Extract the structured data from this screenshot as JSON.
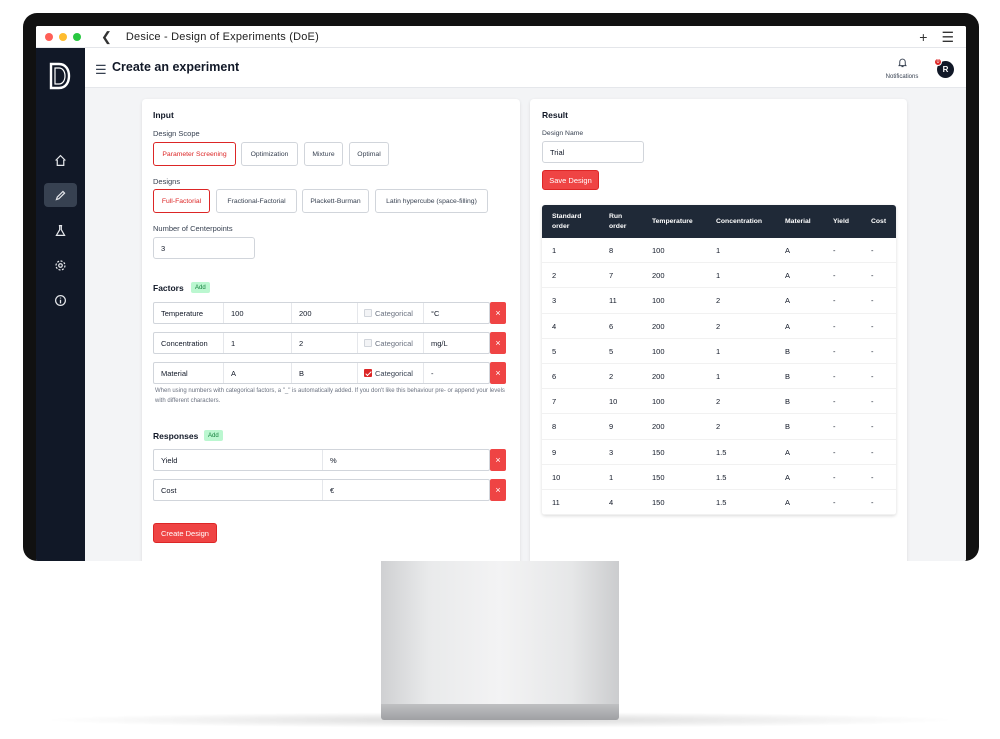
{
  "window": {
    "title": "Desice - Design of Experiments (DoE)"
  },
  "sidebar": {
    "logo_letter": "D",
    "items": [
      {
        "icon": "home-icon"
      },
      {
        "icon": "pencil-icon",
        "active": true
      },
      {
        "icon": "flask-icon"
      },
      {
        "icon": "gear-icon"
      },
      {
        "icon": "info-icon"
      }
    ]
  },
  "header": {
    "title": "Create an experiment",
    "notifications_label": "Notifications",
    "avatar_initial": "R",
    "avatar_badge": "0"
  },
  "input": {
    "heading": "Input",
    "design_scope_label": "Design Scope",
    "design_scope_options": [
      "Parameter Screening",
      "Optimization",
      "Mixture",
      "Optimal"
    ],
    "design_scope_selected": "Parameter Screening",
    "designs_label": "Designs",
    "designs_options": [
      "Full-Factorial",
      "Fractional-Factorial",
      "Plackett-Burman",
      "Latin hypercube (space-filling)"
    ],
    "designs_selected": "Full-Factorial",
    "centerpoints_label": "Number of Centerpoints",
    "centerpoints_value": "3",
    "factors_heading": "Factors",
    "add_label": "Add",
    "categorical_label": "Categorical",
    "factors": [
      {
        "name": "Temperature",
        "low": "100",
        "high": "200",
        "categorical": false,
        "unit": "°C"
      },
      {
        "name": "Concentration",
        "low": "1",
        "high": "2",
        "categorical": false,
        "unit": "mg/L"
      },
      {
        "name": "Material",
        "low": "A",
        "high": "B",
        "categorical": true,
        "unit": "-"
      }
    ],
    "note": "When using numbers with categorical factors, a \"_\" is automatically added. If you don't like this behaviour pre- or append your levels with different characters.",
    "responses_heading": "Responses",
    "responses": [
      {
        "name": "Yield",
        "unit": "%"
      },
      {
        "name": "Cost",
        "unit": "€"
      }
    ],
    "create_button": "Create Design",
    "delete_symbol": "×"
  },
  "result": {
    "heading": "Result",
    "design_name_label": "Design Name",
    "design_name_value": "Trial",
    "save_button": "Save Design",
    "table": {
      "columns": [
        "Standard order",
        "Run order",
        "Temperature",
        "Concentration",
        "Material",
        "Yield",
        "Cost"
      ],
      "rows": [
        [
          "1",
          "8",
          "100",
          "1",
          "A",
          "-",
          "-"
        ],
        [
          "2",
          "7",
          "200",
          "1",
          "A",
          "-",
          "-"
        ],
        [
          "3",
          "11",
          "100",
          "2",
          "A",
          "-",
          "-"
        ],
        [
          "4",
          "6",
          "200",
          "2",
          "A",
          "-",
          "-"
        ],
        [
          "5",
          "5",
          "100",
          "1",
          "B",
          "-",
          "-"
        ],
        [
          "6",
          "2",
          "200",
          "1",
          "B",
          "-",
          "-"
        ],
        [
          "7",
          "10",
          "100",
          "2",
          "B",
          "-",
          "-"
        ],
        [
          "8",
          "9",
          "200",
          "2",
          "B",
          "-",
          "-"
        ],
        [
          "9",
          "3",
          "150",
          "1.5",
          "A",
          "-",
          "-"
        ],
        [
          "10",
          "1",
          "150",
          "1.5",
          "A",
          "-",
          "-"
        ],
        [
          "11",
          "4",
          "150",
          "1.5",
          "A",
          "-",
          "-"
        ]
      ]
    }
  },
  "colors": {
    "accent": "#ef4444",
    "sidebar_bg": "#111827",
    "table_header_bg": "#1f2937",
    "add_badge_bg": "#bbf7d0"
  }
}
